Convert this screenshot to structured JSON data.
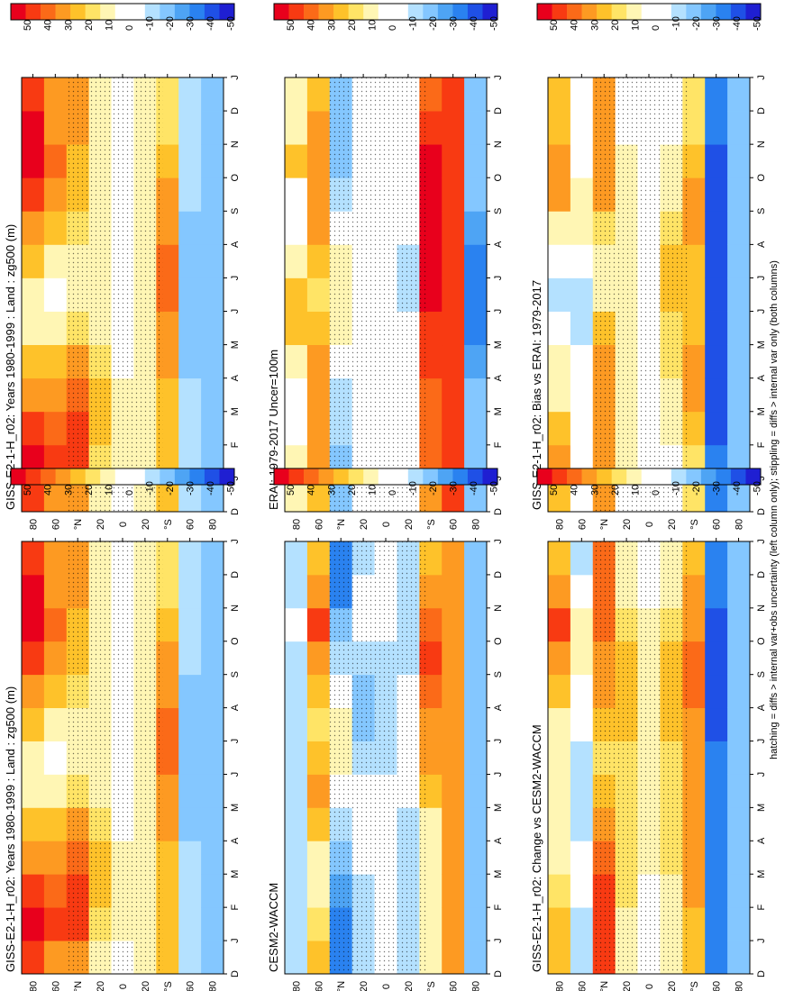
{
  "footer": "hatching = diffs > internal var+obs uncertainty (left column only); stippling = diffs > internal var only (both columns)",
  "colorbar_labels": [
    "50",
    "40",
    "30",
    "20",
    "10",
    "0",
    "-10",
    "-20",
    "-30",
    "-40",
    "-50"
  ],
  "colorbar_colors": [
    "#e8001c",
    "#f83a12",
    "#fb6a18",
    "#fd9a22",
    "#fec22a",
    "#ffe466",
    "#fff6b4",
    "#ffffff",
    "#ffffff",
    "#b4e1ff",
    "#84c7ff",
    "#4ea4f4",
    "#2a82f0",
    "#1f50e6",
    "#1f1fd2"
  ],
  "chart_data": [
    {
      "type": "heatmap",
      "title": "GISS-E2-1-H_r02: Years 1980-1999 : Land : zg500 (m)",
      "units": "m",
      "clim": [
        -50,
        50
      ],
      "y_ticks": [
        "80",
        "60",
        "°N",
        "20",
        "0",
        "20",
        "°S",
        "60",
        "80"
      ],
      "x_ticks": [
        "D",
        "J",
        "F",
        "M",
        "A",
        "M",
        "J",
        "J",
        "A",
        "S",
        "O",
        "N",
        "D",
        "J"
      ],
      "cells": [
        [
          40,
          55,
          40,
          30,
          20,
          10,
          10,
          20,
          30,
          40,
          60,
          50,
          40
        ],
        [
          30,
          40,
          35,
          30,
          20,
          10,
          0,
          10,
          20,
          30,
          35,
          30,
          30
        ],
        [
          30,
          40,
          40,
          35,
          25,
          15,
          10,
          10,
          15,
          20,
          20,
          25,
          25
        ],
        [
          10,
          15,
          20,
          20,
          15,
          10,
          5,
          5,
          5,
          10,
          10,
          10,
          10
        ],
        [
          0,
          5,
          5,
          5,
          0,
          0,
          0,
          0,
          0,
          0,
          0,
          0,
          0
        ],
        [
          5,
          10,
          10,
          10,
          10,
          10,
          10,
          10,
          10,
          10,
          10,
          5,
          5
        ],
        [
          20,
          20,
          20,
          20,
          25,
          30,
          35,
          35,
          30,
          25,
          20,
          15,
          15
        ],
        [
          -10,
          -10,
          -10,
          -15,
          -20,
          -20,
          -20,
          -20,
          -20,
          -15,
          -10,
          -10,
          -10
        ],
        [
          -20,
          -20,
          -20,
          -20,
          -20,
          -20,
          -20,
          -20,
          -20,
          -20,
          -20,
          -20,
          -20
        ]
      ]
    },
    {
      "type": "heatmap",
      "title": "GISS-E2-1-H_r02: Years 1980-1999 : Land : zg500 (m)",
      "units": "m",
      "clim": [
        -50,
        50
      ],
      "y_ticks": [
        "80",
        "60",
        "°N",
        "20",
        "0",
        "20",
        "°S",
        "60",
        "80"
      ],
      "x_ticks": [
        "D",
        "J",
        "F",
        "M",
        "A",
        "M",
        "J",
        "J",
        "A",
        "S",
        "O",
        "N",
        "D",
        "J"
      ],
      "cells": [
        [
          40,
          55,
          40,
          30,
          20,
          10,
          10,
          20,
          30,
          40,
          60,
          50,
          40
        ],
        [
          30,
          40,
          35,
          30,
          20,
          10,
          0,
          10,
          20,
          30,
          35,
          30,
          30
        ],
        [
          30,
          40,
          40,
          35,
          25,
          15,
          10,
          10,
          15,
          20,
          20,
          25,
          25
        ],
        [
          10,
          15,
          20,
          20,
          15,
          10,
          5,
          5,
          5,
          10,
          10,
          10,
          10
        ],
        [
          0,
          5,
          5,
          5,
          0,
          0,
          0,
          0,
          0,
          0,
          0,
          0,
          0
        ],
        [
          5,
          10,
          10,
          10,
          10,
          10,
          10,
          10,
          10,
          10,
          10,
          5,
          5
        ],
        [
          20,
          20,
          20,
          20,
          25,
          30,
          35,
          35,
          30,
          25,
          20,
          15,
          15
        ],
        [
          -10,
          -10,
          -10,
          -15,
          -20,
          -20,
          -20,
          -20,
          -20,
          -15,
          -10,
          -10,
          -10
        ],
        [
          -20,
          -20,
          -20,
          -20,
          -20,
          -20,
          -20,
          -20,
          -20,
          -20,
          -20,
          -20,
          -20
        ]
      ]
    },
    {
      "type": "heatmap",
      "title": "ERAI: 1979-2017 Uncer=100m",
      "units": "m",
      "clim": [
        -50,
        50
      ],
      "y_ticks": [
        "80",
        "60",
        "°N",
        "20",
        "0",
        "20",
        "°S",
        "60",
        "80"
      ],
      "x_ticks": [
        "D",
        "J",
        "F",
        "M",
        "A",
        "M",
        "J",
        "J",
        "A",
        "S",
        "O",
        "N",
        "D",
        "J"
      ],
      "cells": [
        [
          10,
          10,
          0,
          0,
          10,
          20,
          20,
          10,
          0,
          0,
          20,
          10,
          10
        ],
        [
          20,
          25,
          30,
          30,
          25,
          20,
          15,
          20,
          25,
          30,
          30,
          25,
          20
        ],
        [
          -20,
          -20,
          -15,
          -10,
          0,
          5,
          10,
          10,
          0,
          -10,
          -20,
          -20,
          -20
        ],
        [
          0,
          0,
          0,
          0,
          0,
          0,
          0,
          0,
          -5,
          -5,
          0,
          0,
          0
        ],
        [
          0,
          0,
          0,
          0,
          0,
          0,
          0,
          0,
          0,
          0,
          0,
          0,
          0
        ],
        [
          0,
          0,
          0,
          0,
          0,
          0,
          -10,
          -10,
          -5,
          0,
          0,
          0,
          0
        ],
        [
          30,
          35,
          35,
          35,
          40,
          40,
          45,
          45,
          50,
          50,
          45,
          40,
          35
        ],
        [
          40,
          40,
          40,
          40,
          40,
          40,
          40,
          40,
          40,
          40,
          40,
          40,
          40
        ],
        [
          -20,
          -20,
          -20,
          -20,
          -25,
          -30,
          -30,
          -30,
          -25,
          -20,
          -20,
          -20,
          -20
        ]
      ]
    },
    {
      "type": "heatmap",
      "title": "CESM2-WACCM",
      "units": "m",
      "clim": [
        -50,
        50
      ],
      "y_ticks": [
        "80",
        "60",
        "°N",
        "20",
        "0",
        "20",
        "°S",
        "60",
        "80"
      ],
      "x_ticks": [
        "D",
        "J",
        "F",
        "M",
        "A",
        "M",
        "J",
        "J",
        "A",
        "S",
        "O",
        "N",
        "D",
        "J"
      ],
      "cells": [
        [
          -10,
          -15,
          -15,
          -10,
          -10,
          -10,
          -10,
          -10,
          -15,
          -10,
          0,
          -10,
          -10
        ],
        [
          20,
          15,
          10,
          10,
          20,
          25,
          20,
          15,
          20,
          30,
          40,
          30,
          20
        ],
        [
          -30,
          -30,
          -25,
          -20,
          -10,
          0,
          10,
          10,
          0,
          -10,
          -20,
          -30,
          -30
        ],
        [
          -10,
          -10,
          -10,
          -5,
          0,
          0,
          -10,
          -20,
          -20,
          -10,
          -5,
          -5,
          -10
        ],
        [
          0,
          0,
          0,
          0,
          0,
          0,
          -10,
          -15,
          -15,
          -10,
          0,
          0,
          0
        ],
        [
          -10,
          -15,
          -15,
          -15,
          -10,
          -5,
          0,
          0,
          -5,
          -10,
          -10,
          -10,
          -10
        ],
        [
          10,
          10,
          10,
          10,
          10,
          20,
          30,
          30,
          35,
          40,
          35,
          30,
          20
        ],
        [
          30,
          30,
          30,
          30,
          30,
          30,
          30,
          30,
          30,
          30,
          30,
          30,
          30
        ],
        [
          -20,
          -20,
          -20,
          -20,
          -20,
          -20,
          -20,
          -20,
          -20,
          -20,
          -20,
          -20,
          -20
        ]
      ]
    },
    {
      "type": "heatmap",
      "title": "GISS-E2-1-H_r02: Bias vs ERAI: 1979-2017",
      "units": "m",
      "clim": [
        -50,
        50
      ],
      "y_ticks": [
        "80",
        "60",
        "°N",
        "20",
        "0",
        "20",
        "°S",
        "60",
        "80"
      ],
      "x_ticks": [
        "D",
        "J",
        "F",
        "M",
        "A",
        "M",
        "J",
        "J",
        "A",
        "S",
        "O",
        "N",
        "D",
        "J"
      ],
      "cells": [
        [
          20,
          25,
          20,
          10,
          10,
          0,
          -10,
          0,
          10,
          30,
          30,
          20,
          20
        ],
        [
          0,
          0,
          0,
          0,
          -5,
          -10,
          -10,
          0,
          5,
          10,
          0,
          0,
          0
        ],
        [
          30,
          30,
          30,
          30,
          25,
          20,
          10,
          10,
          15,
          25,
          30,
          30,
          30
        ],
        [
          0,
          5,
          5,
          10,
          10,
          10,
          10,
          10,
          10,
          10,
          5,
          0,
          0
        ],
        [
          0,
          0,
          0,
          0,
          0,
          0,
          0,
          0,
          0,
          0,
          0,
          0,
          0
        ],
        [
          0,
          0,
          5,
          10,
          15,
          15,
          20,
          20,
          15,
          10,
          5,
          0,
          0
        ],
        [
          15,
          15,
          20,
          25,
          25,
          20,
          20,
          20,
          25,
          25,
          20,
          15,
          15
        ],
        [
          -30,
          -35,
          -40,
          -40,
          -40,
          -40,
          -40,
          -40,
          -40,
          -40,
          -40,
          -35,
          -35
        ],
        [
          -20,
          -20,
          -20,
          -20,
          -20,
          -20,
          -20,
          -20,
          -20,
          -20,
          -20,
          -20,
          -20
        ]
      ]
    },
    {
      "type": "heatmap",
      "title": "GISS-E2-1-H_r02: Change vs CESM2-WACCM",
      "units": "m",
      "clim": [
        -50,
        50
      ],
      "y_ticks": [
        "80",
        "60",
        "°N",
        "20",
        "0",
        "20",
        "°S",
        "60",
        "80"
      ],
      "x_ticks": [
        "D",
        "J",
        "F",
        "M",
        "A",
        "M",
        "J",
        "J",
        "A",
        "S",
        "O",
        "N",
        "D",
        "J"
      ],
      "cells": [
        [
          20,
          20,
          15,
          10,
          10,
          10,
          10,
          10,
          20,
          30,
          40,
          30,
          20
        ],
        [
          -10,
          -10,
          -5,
          0,
          -10,
          -15,
          -10,
          -5,
          0,
          10,
          10,
          0,
          -10
        ],
        [
          40,
          40,
          40,
          35,
          30,
          20,
          15,
          20,
          25,
          30,
          35,
          35,
          35
        ],
        [
          10,
          10,
          15,
          15,
          15,
          15,
          15,
          20,
          20,
          20,
          15,
          10,
          10
        ],
        [
          0,
          0,
          0,
          5,
          5,
          5,
          5,
          5,
          5,
          5,
          5,
          0,
          0
        ],
        [
          10,
          10,
          10,
          15,
          15,
          15,
          15,
          20,
          20,
          20,
          15,
          10,
          10
        ],
        [
          20,
          20,
          25,
          25,
          25,
          25,
          30,
          30,
          35,
          35,
          30,
          25,
          20
        ],
        [
          -30,
          -35,
          -35,
          -35,
          -35,
          -35,
          -35,
          -40,
          -40,
          -40,
          -40,
          -35,
          -35
        ],
        [
          -20,
          -20,
          -20,
          -20,
          -20,
          -20,
          -20,
          -20,
          -20,
          -20,
          -20,
          -20,
          -20
        ]
      ]
    }
  ]
}
